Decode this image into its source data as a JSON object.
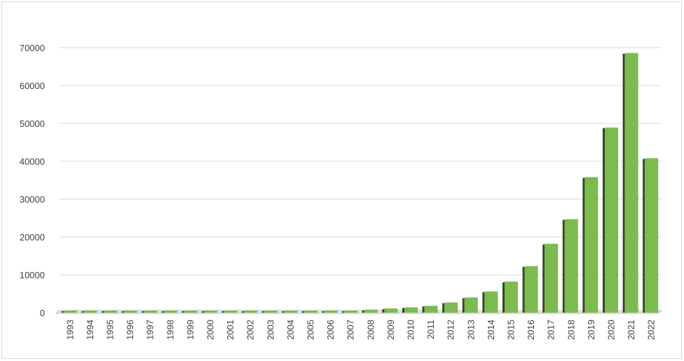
{
  "chart_data": {
    "type": "bar",
    "title": "",
    "xlabel": "",
    "ylabel": "",
    "categories": [
      "1993",
      "1994",
      "1995",
      "1996",
      "1997",
      "1998",
      "1999",
      "2000",
      "2001",
      "2002",
      "2003",
      "2004",
      "2005",
      "2006",
      "2007",
      "2008",
      "2009",
      "2010",
      "2011",
      "2012",
      "2013",
      "2014",
      "2015",
      "2016",
      "2017",
      "2018",
      "2019",
      "2020",
      "2021",
      "2022"
    ],
    "values": [
      5,
      10,
      15,
      20,
      25,
      30,
      40,
      50,
      60,
      80,
      100,
      150,
      200,
      300,
      500,
      800,
      1100,
      1400,
      1800,
      2700,
      4000,
      5600,
      8200,
      12300,
      18200,
      24700,
      35800,
      48900,
      68600,
      40800
    ],
    "ylim": [
      0,
      70000
    ],
    "yticks": [
      0,
      10000,
      20000,
      30000,
      40000,
      50000,
      60000,
      70000
    ],
    "grid": true,
    "legend": "none",
    "colors": {
      "bar": "#7cbb4f",
      "bar_side": "#2e4a1e",
      "grid": "#d9d9d9",
      "floor": "#bfbfbf"
    }
  }
}
